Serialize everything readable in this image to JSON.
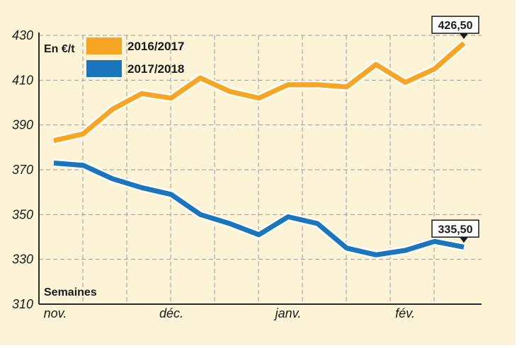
{
  "chart_data": {
    "type": "line",
    "unit_label": "En €/t",
    "xlabel": "Semaines",
    "x_tick_labels": [
      "nov.",
      "déc.",
      "janv.",
      "fév."
    ],
    "x_tick_weeks": [
      0,
      4,
      8,
      12
    ],
    "ylim": [
      310,
      430
    ],
    "y_ticks": [
      310,
      330,
      350,
      370,
      390,
      410,
      430
    ],
    "grid": true,
    "legend_position": "top-left",
    "series": [
      {
        "name": "2016/2017",
        "color": "#f6a623",
        "values": [
          383,
          386,
          397,
          404,
          402,
          411,
          405,
          402,
          408,
          408,
          407,
          417,
          409,
          415,
          426.5
        ],
        "end_label": "426,50"
      },
      {
        "name": "2017/2018",
        "color": "#1b75bb",
        "values": [
          373,
          372,
          366,
          362,
          359,
          350,
          346,
          341,
          349,
          346,
          335,
          332,
          334,
          338,
          335.5
        ],
        "end_label": "335,50"
      }
    ]
  },
  "colors": {
    "panel_background": "#fdf3d6",
    "grid": "#9a9a9a",
    "axis": "#2a2a2a"
  }
}
